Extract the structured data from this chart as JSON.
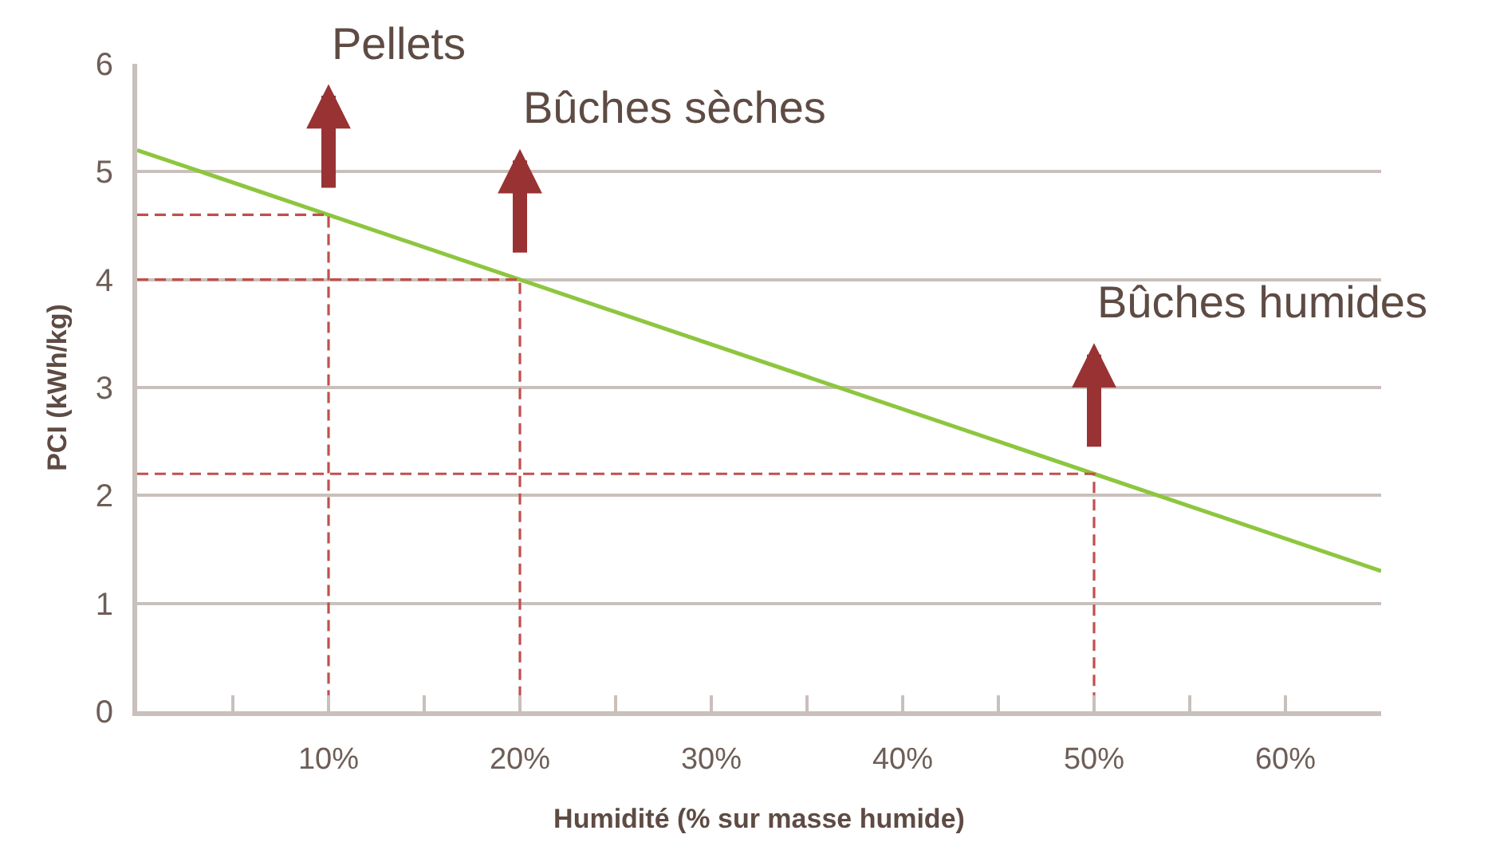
{
  "chart_data": {
    "type": "line",
    "xlabel": "Humidité (% sur masse humide)",
    "ylabel": "PCI (kWh/kg)",
    "xlim": [
      0,
      65
    ],
    "xticks": [
      {
        "value": 5,
        "label": null
      },
      {
        "value": 10,
        "label": "10%"
      },
      {
        "value": 15,
        "label": null
      },
      {
        "value": 20,
        "label": "20%"
      },
      {
        "value": 25,
        "label": null
      },
      {
        "value": 30,
        "label": "30%"
      },
      {
        "value": 35,
        "label": null
      },
      {
        "value": 40,
        "label": "40%"
      },
      {
        "value": 45,
        "label": null
      },
      {
        "value": 50,
        "label": "50%"
      },
      {
        "value": 55,
        "label": null
      },
      {
        "value": 60,
        "label": "60%"
      }
    ],
    "ylim": [
      0,
      6
    ],
    "yticks": [
      0,
      1,
      2,
      3,
      4,
      5,
      6
    ],
    "grid": "y",
    "series": [
      {
        "color": "#8dc63f",
        "x": [
          0,
          65
        ],
        "values": [
          5.2,
          1.3
        ]
      },
      {
        "color": "#c0504d",
        "line_style": "dashed",
        "x": [
          0,
          10,
          10
        ],
        "values": [
          4.6,
          4.6,
          0
        ]
      },
      {
        "color": "#c0504d",
        "line_style": "dashed",
        "x": [
          0,
          20,
          20
        ],
        "values": [
          4.0,
          4.0,
          0
        ]
      },
      {
        "color": "#c0504d",
        "line_style": "dashed",
        "x": [
          0,
          50,
          50
        ],
        "values": [
          2.2,
          2.2,
          0
        ]
      }
    ],
    "annotations": [
      {
        "text": "Pellets",
        "x": 10,
        "y": 4.6
      },
      {
        "text": "Bûches sèches",
        "x": 20,
        "y": 4.0
      },
      {
        "text": "Bûches humides",
        "x": 50,
        "y": 2.2
      }
    ]
  }
}
